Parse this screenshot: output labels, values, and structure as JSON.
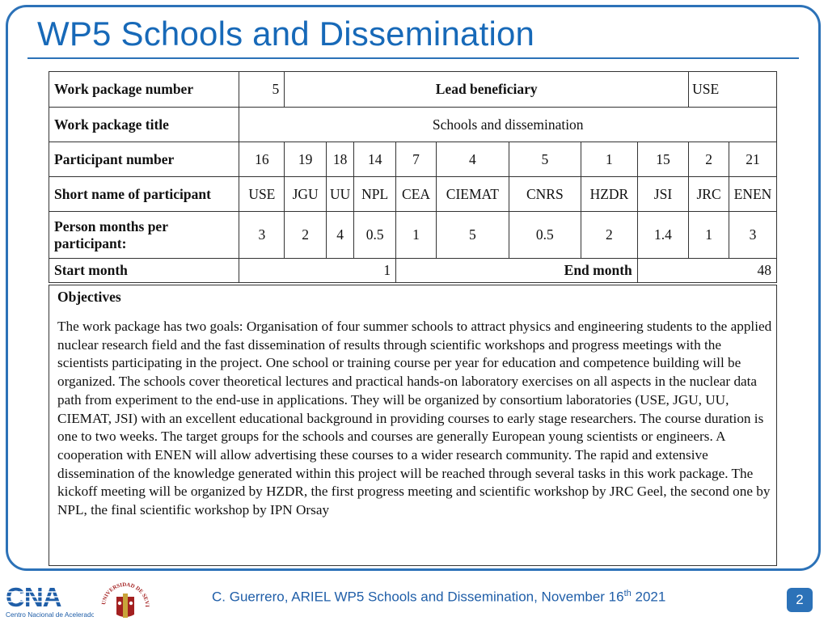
{
  "slide": {
    "title": "WP5 Schools and Dissemination",
    "footer": {
      "text_before_sup": "C. Guerrero, ARIEL WP5 Schools and Dissemination, November 16",
      "sup": "th",
      "text_after_sup": " 2021",
      "page_number": "2"
    },
    "logos": {
      "cna_main": "CNA",
      "cna_sub": "Centro Nacional de Aceleradores",
      "us_arc": "UNIVERSIDAD DE SEVILLA"
    },
    "colors": {
      "accent": "#2c72b8",
      "title": "#1769b8"
    }
  },
  "table": {
    "wp_number_label": "Work package number",
    "wp_number_value": "5",
    "lead_label": "Lead beneficiary",
    "lead_value": "USE",
    "wp_title_label": "Work package title",
    "wp_title_value": "Schools and dissemination",
    "participant_number_label": "Participant number",
    "short_name_label": "Short name of participant",
    "person_months_label": "Person months per participant:",
    "start_label": "Start month",
    "start_value": "1",
    "end_label": "End month",
    "end_value": "48",
    "participants": [
      {
        "number": "16",
        "name": "USE",
        "months": "3"
      },
      {
        "number": "19",
        "name": "JGU",
        "months": "2"
      },
      {
        "number": "18",
        "name": "UU",
        "months": "4"
      },
      {
        "number": "14",
        "name": "NPL",
        "months": "0.5"
      },
      {
        "number": "7",
        "name": "CEA",
        "months": "1"
      },
      {
        "number": "4",
        "name": "CIEMAT",
        "months": "5"
      },
      {
        "number": "5",
        "name": "CNRS",
        "months": "0.5"
      },
      {
        "number": "1",
        "name": "HZDR",
        "months": "2"
      },
      {
        "number": "15",
        "name": "JSI",
        "months": "1.4"
      },
      {
        "number": "2",
        "name": "JRC",
        "months": "1"
      },
      {
        "number": "21",
        "name": "ENEN",
        "months": "3"
      }
    ]
  },
  "objectives": {
    "heading": "Objectives",
    "body": "The work package has two goals: Organisation of four summer schools to attract physics and engineering students to the applied nuclear research field and the fast dissemination of results through scientific workshops and progress meetings with the scientists participating in the project.  One school or training course per year for education and competence building will be organized. The schools cover theoretical lectures and practical hands-on laboratory exercises on all aspects in the nuclear data path from experiment to the end-use in applications. They will be organized by consortium laboratories (USE, JGU, UU, CIEMAT, JSI) with an excellent educational background in providing courses to early stage researchers. The course duration is one to two weeks. The target groups for the schools and courses are generally European young scientists or engineers. A cooperation with ENEN will allow advertising these courses to a wider research community. The rapid and extensive dissemination of the knowledge generated within this project will be reached through several tasks in this work package. The kickoff meeting will be organized by HZDR, the first progress meeting and scientific workshop by JRC Geel, the second one by NPL, the final scientific workshop by IPN Orsay"
  }
}
